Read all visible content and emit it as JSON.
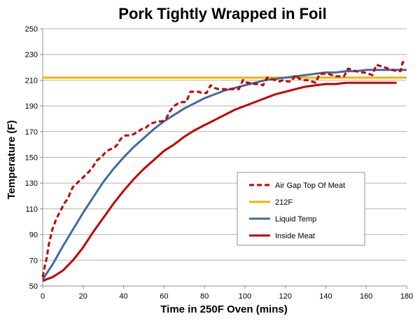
{
  "chart_data": {
    "type": "line",
    "title": "Pork Tightly Wrapped in Foil",
    "xlabel": "Time in 250F Oven (mins)",
    "ylabel": "Temperature (F)",
    "xlim": [
      0,
      180
    ],
    "ylim": [
      50,
      250
    ],
    "xticks": [
      "0",
      "20",
      "40",
      "60",
      "80",
      "100",
      "120",
      "140",
      "160",
      "180"
    ],
    "yticks": [
      "50",
      "70",
      "90",
      "110",
      "130",
      "150",
      "170",
      "190",
      "210",
      "230",
      "250"
    ],
    "grid": "horizontal",
    "legend_position": "right",
    "series": [
      {
        "name": "Air Gap Top Of Meat",
        "color": "#c00000",
        "dash": "dashed",
        "x": [
          0,
          1,
          2,
          3,
          4,
          5,
          6,
          7,
          8,
          9,
          10,
          11,
          12,
          13,
          14,
          15,
          17,
          19,
          21,
          23,
          25,
          27,
          29,
          31,
          33,
          35,
          37,
          38,
          39,
          41,
          43,
          45,
          47,
          49,
          50,
          51,
          53,
          55,
          57,
          59,
          61,
          63,
          65,
          67,
          69,
          71,
          73,
          75,
          77,
          79,
          81,
          83,
          85,
          87,
          89,
          91,
          93,
          95,
          97,
          99,
          100,
          101,
          103,
          105,
          107,
          109,
          111,
          113,
          115,
          117,
          119,
          121,
          123,
          125,
          127,
          129,
          131,
          133,
          135,
          137,
          139,
          141,
          143,
          145,
          147,
          149,
          151,
          153,
          155,
          157,
          159,
          161,
          163,
          165,
          167,
          169,
          171,
          173,
          175,
          177,
          178,
          180
        ],
        "y": [
          57,
          65,
          72,
          82,
          89,
          95,
          99,
          103,
          106,
          109,
          112,
          115,
          117,
          120,
          124,
          127,
          130,
          133,
          136,
          139,
          143,
          148,
          150,
          154,
          156,
          157,
          160,
          163,
          165,
          167,
          167,
          168,
          170,
          172,
          172,
          173,
          176,
          177,
          178,
          178,
          180,
          186,
          190,
          192,
          193,
          193,
          201,
          201,
          201,
          200,
          200,
          206,
          204,
          203,
          203,
          203,
          203,
          203,
          203,
          210,
          210,
          208,
          208,
          207,
          207,
          206,
          212,
          211,
          210,
          209,
          210,
          209,
          209,
          214,
          211,
          210,
          210,
          209,
          208,
          215,
          215,
          215,
          214,
          213,
          213,
          213,
          219,
          218,
          217,
          216,
          216,
          215,
          214,
          222,
          221,
          220,
          219,
          218,
          217,
          217,
          224,
          224
        ]
      },
      {
        "name": "212F",
        "color": "#f2b400",
        "dash": "solid",
        "x": [
          0,
          180
        ],
        "y": [
          212,
          212
        ]
      },
      {
        "name": "Liquid Temp",
        "color": "#3f6ba3",
        "dash": "solid",
        "x": [
          0,
          5,
          10,
          15,
          20,
          25,
          30,
          35,
          40,
          45,
          50,
          55,
          60,
          65,
          70,
          75,
          80,
          85,
          90,
          95,
          100,
          105,
          110,
          115,
          120,
          125,
          130,
          135,
          140,
          145,
          150,
          155,
          160,
          165,
          170,
          175,
          180
        ],
        "y": [
          55,
          67,
          81,
          94,
          107,
          119,
          131,
          141,
          150,
          158,
          165,
          172,
          178,
          183,
          188,
          192,
          196,
          199,
          202,
          204,
          206,
          208,
          210,
          211,
          212,
          213,
          214,
          215,
          216,
          216,
          217,
          217,
          218,
          218,
          218,
          218,
          218
        ]
      },
      {
        "name": "Inside Meat",
        "color": "#c00000",
        "dash": "solid",
        "x": [
          0,
          5,
          10,
          15,
          20,
          25,
          30,
          35,
          40,
          45,
          50,
          55,
          60,
          65,
          70,
          75,
          80,
          85,
          90,
          95,
          100,
          105,
          110,
          115,
          120,
          125,
          130,
          135,
          140,
          145,
          150,
          155,
          160,
          165,
          170,
          175
        ],
        "y": [
          54,
          57,
          62,
          70,
          80,
          92,
          103,
          114,
          124,
          133,
          141,
          148,
          155,
          160,
          166,
          171,
          175,
          179,
          183,
          187,
          190,
          193,
          196,
          199,
          201,
          203,
          205,
          206,
          207,
          207,
          208,
          208,
          208,
          208,
          208,
          208
        ]
      }
    ]
  }
}
